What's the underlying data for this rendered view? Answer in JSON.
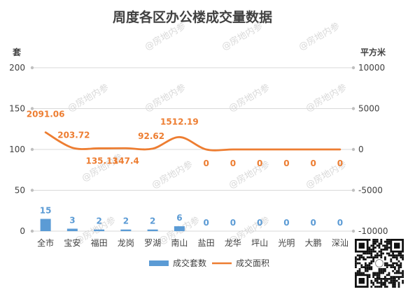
{
  "chart_data": {
    "type": "bar",
    "title": "周度各区办公楼成交量数据",
    "left_unit": "套",
    "right_unit": "平方米",
    "categories": [
      "全市",
      "宝安",
      "福田",
      "龙岗",
      "罗湖",
      "南山",
      "盐田",
      "龙华",
      "坪山",
      "光明",
      "大鹏",
      "深汕"
    ],
    "y_left": {
      "ylim": [
        0,
        200
      ],
      "ticks": [
        "0",
        "50",
        "100",
        "150",
        "200"
      ]
    },
    "y_right": {
      "ylim": [
        -10000,
        10000
      ],
      "ticks": [
        "-10000",
        "-5000",
        "0",
        "5000",
        "10000"
      ]
    },
    "series": [
      {
        "name": "成交套数",
        "kind": "bar",
        "axis": "left",
        "color": "#5b9bd5",
        "values": [
          15,
          3,
          2,
          2,
          2,
          6,
          0,
          0,
          0,
          0,
          0,
          0
        ],
        "labels": [
          "15",
          "3",
          "2",
          "2",
          "2",
          "6",
          "0",
          "0",
          "0",
          "0",
          "0",
          "0"
        ]
      },
      {
        "name": "成交面积",
        "kind": "line",
        "axis": "right",
        "color": "#ed7d31",
        "values": [
          2091.06,
          203.72,
          135.13,
          147.4,
          92.62,
          1512.19,
          0,
          0,
          0,
          0,
          0,
          0
        ],
        "labels": [
          "2091.06",
          "203.72",
          "135.13",
          "147.4",
          "92.62",
          "1512.19",
          "0",
          "0",
          "0",
          "0",
          "0",
          "0"
        ]
      }
    ],
    "grid": true,
    "legend": "bottom"
  },
  "watermark": "@房地内参",
  "qr_icon": "qr-code-icon"
}
